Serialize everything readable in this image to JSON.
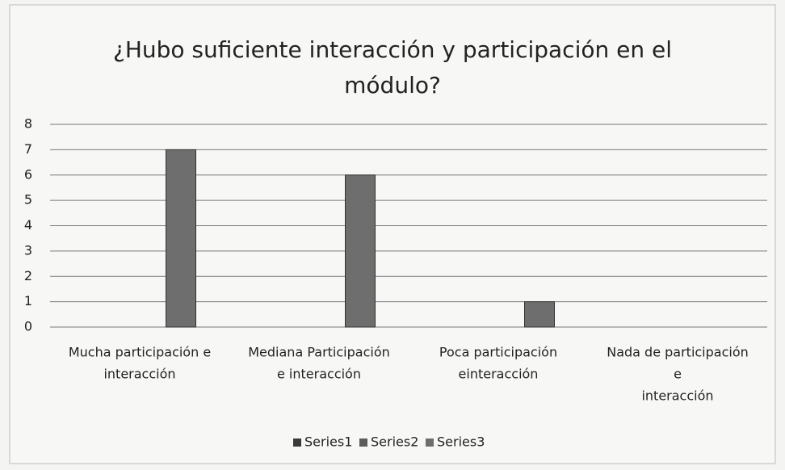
{
  "chart_data": {
    "type": "bar",
    "title": "¿Hubo suficiente interacción y participación en el módulo?",
    "categories": [
      [
        "Mucha participación e",
        "interacción"
      ],
      [
        "Mediana Participación",
        "e interacción"
      ],
      [
        "Poca participación",
        "einteracción"
      ],
      [
        "Nada de participación",
        "e",
        "interacción"
      ]
    ],
    "series": [
      {
        "name": "Series1",
        "color": "#3a3a3a",
        "values": [
          null,
          null,
          null,
          null
        ]
      },
      {
        "name": "Series2",
        "color": "#5c5c5c",
        "values": [
          null,
          null,
          null,
          null
        ]
      },
      {
        "name": "Series3",
        "color": "#6e6e6e",
        "values": [
          7,
          6,
          1,
          0
        ]
      }
    ],
    "ylim": [
      0,
      8
    ],
    "yticks": [
      0,
      1,
      2,
      3,
      4,
      5,
      6,
      7,
      8
    ],
    "grid": true,
    "legend": "bottom"
  }
}
